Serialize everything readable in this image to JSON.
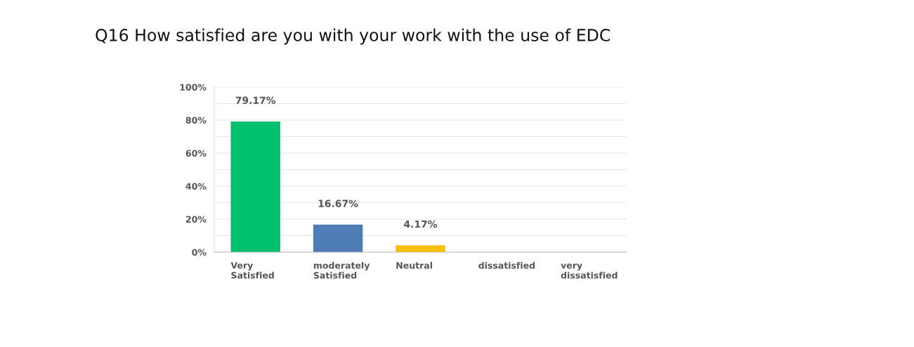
{
  "chart_data": {
    "type": "bar",
    "title": "Q16 How satisfied are you with your work with the use of EDC",
    "categories": [
      "Very\nSatisfied",
      "moderately\nSatisfied",
      "Neutral",
      "dissatisfied",
      "very\ndissatisfied"
    ],
    "values": [
      79.17,
      16.67,
      4.17,
      0,
      0
    ],
    "colors": [
      "#00bf6f",
      "#507cb6",
      "#f9be00",
      "#a0a0a0",
      "#a0a0a0"
    ],
    "value_labels": [
      "79.17%",
      "16.67%",
      "4.17%",
      null,
      null
    ],
    "ylim": [
      0,
      100
    ],
    "yticks": [
      {
        "value": 0,
        "label": "0%"
      },
      {
        "value": 10,
        "label": null
      },
      {
        "value": 20,
        "label": "20%"
      },
      {
        "value": 30,
        "label": null
      },
      {
        "value": 40,
        "label": "40%"
      },
      {
        "value": 50,
        "label": null
      },
      {
        "value": 60,
        "label": "60%"
      },
      {
        "value": 70,
        "label": null
      },
      {
        "value": 80,
        "label": "80%"
      },
      {
        "value": 90,
        "label": null
      },
      {
        "value": 100,
        "label": "100%"
      }
    ],
    "grid": "y"
  }
}
